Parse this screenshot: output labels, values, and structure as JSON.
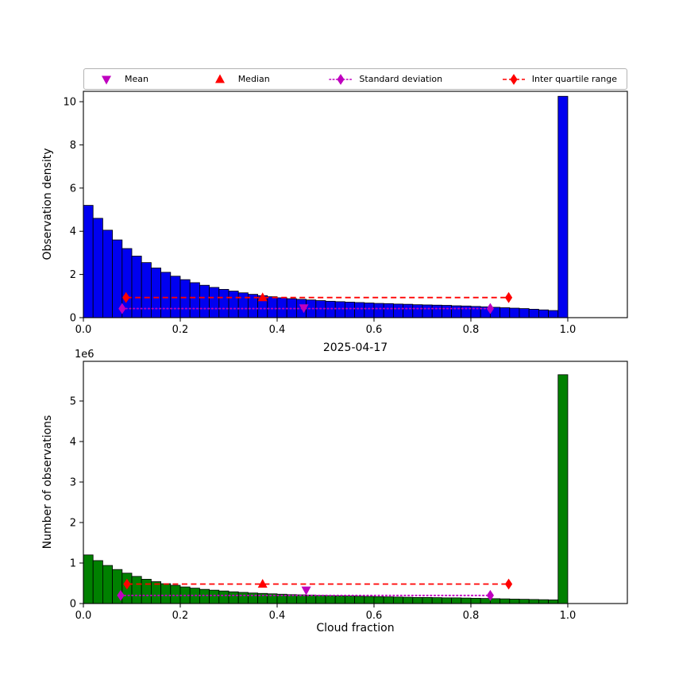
{
  "figure": {
    "background": "#ffffff"
  },
  "legend": {
    "items": [
      {
        "label": "Mean",
        "marker": "triangle-down",
        "color": "#bf00bf",
        "line": "none"
      },
      {
        "label": "Median",
        "marker": "triangle-up",
        "color": "#ff0000",
        "line": "none"
      },
      {
        "label": "Standard deviation",
        "marker": "diamond",
        "color": "#bf00bf",
        "line": "dotted"
      },
      {
        "label": "Inter quartile range",
        "marker": "diamond",
        "color": "#ff0000",
        "line": "dashed"
      }
    ]
  },
  "chart_data": [
    {
      "type": "bar",
      "title": "",
      "ylabel": "Observation density",
      "xlabel": "",
      "bar_color": "#0000f0",
      "bar_edge": "#000000",
      "bin_start": 0.0,
      "bin_width": 0.02,
      "values": [
        5.2,
        4.6,
        4.05,
        3.6,
        3.2,
        2.85,
        2.55,
        2.3,
        2.1,
        1.92,
        1.76,
        1.62,
        1.5,
        1.4,
        1.31,
        1.23,
        1.15,
        1.08,
        1.02,
        0.97,
        0.92,
        0.88,
        0.85,
        0.82,
        0.79,
        0.76,
        0.74,
        0.72,
        0.7,
        0.68,
        0.66,
        0.65,
        0.63,
        0.62,
        0.6,
        0.59,
        0.58,
        0.57,
        0.55,
        0.54,
        0.52,
        0.5,
        0.48,
        0.46,
        0.44,
        0.42,
        0.39,
        0.36,
        0.33,
        10.25
      ],
      "xlim": [
        0,
        1.123
      ],
      "ylim": [
        0,
        10.48
      ],
      "xticks": [
        "0.0",
        "0.2",
        "0.4",
        "0.6",
        "0.8",
        "1.0"
      ],
      "xtick_vals": [
        0,
        0.2,
        0.4,
        0.6,
        0.8,
        1.0
      ],
      "yticks": [
        "0",
        "2",
        "4",
        "6",
        "8",
        "10"
      ],
      "ytick_vals": [
        0,
        2,
        4,
        6,
        8,
        10
      ],
      "grid": false,
      "stats": {
        "mean": {
          "x": 0.455,
          "y": 0.45
        },
        "median": {
          "x": 0.37,
          "y": 0.93
        },
        "std": {
          "x1": 0.08,
          "x2": 0.84,
          "y": 0.42
        },
        "iqr": {
          "x1": 0.088,
          "x2": 0.878,
          "y": 0.93
        }
      }
    },
    {
      "type": "bar",
      "title": "2025-04-17",
      "ylabel": "Number of observations",
      "xlabel": "Cloud fraction",
      "offset_text": "1e6",
      "bar_color": "#008000",
      "bar_edge": "#000000",
      "bin_start": 0.0,
      "bin_width": 0.02,
      "values": [
        1.2,
        1.06,
        0.94,
        0.84,
        0.75,
        0.67,
        0.6,
        0.54,
        0.49,
        0.45,
        0.41,
        0.38,
        0.35,
        0.33,
        0.31,
        0.29,
        0.275,
        0.26,
        0.25,
        0.24,
        0.23,
        0.22,
        0.215,
        0.21,
        0.2,
        0.195,
        0.19,
        0.185,
        0.18,
        0.175,
        0.17,
        0.165,
        0.16,
        0.155,
        0.15,
        0.15,
        0.145,
        0.14,
        0.14,
        0.135,
        0.13,
        0.125,
        0.12,
        0.115,
        0.11,
        0.105,
        0.1,
        0.095,
        0.09,
        5.65
      ],
      "values_unit": "1e6",
      "xlim": [
        0,
        1.123
      ],
      "ylim": [
        0,
        5.98
      ],
      "xticks": [
        "0.0",
        "0.2",
        "0.4",
        "0.6",
        "0.8",
        "1.0"
      ],
      "xtick_vals": [
        0,
        0.2,
        0.4,
        0.6,
        0.8,
        1.0
      ],
      "yticks": [
        "0",
        "1",
        "2",
        "3",
        "4",
        "5"
      ],
      "ytick_vals": [
        0,
        1,
        2,
        3,
        4,
        5
      ],
      "grid": false,
      "stats": {
        "mean": {
          "x": 0.46,
          "y": 0.33
        },
        "median": {
          "x": 0.37,
          "y": 0.48
        },
        "std": {
          "x1": 0.077,
          "x2": 0.84,
          "y": 0.2
        },
        "iqr": {
          "x1": 0.09,
          "x2": 0.878,
          "y": 0.48
        }
      }
    }
  ]
}
